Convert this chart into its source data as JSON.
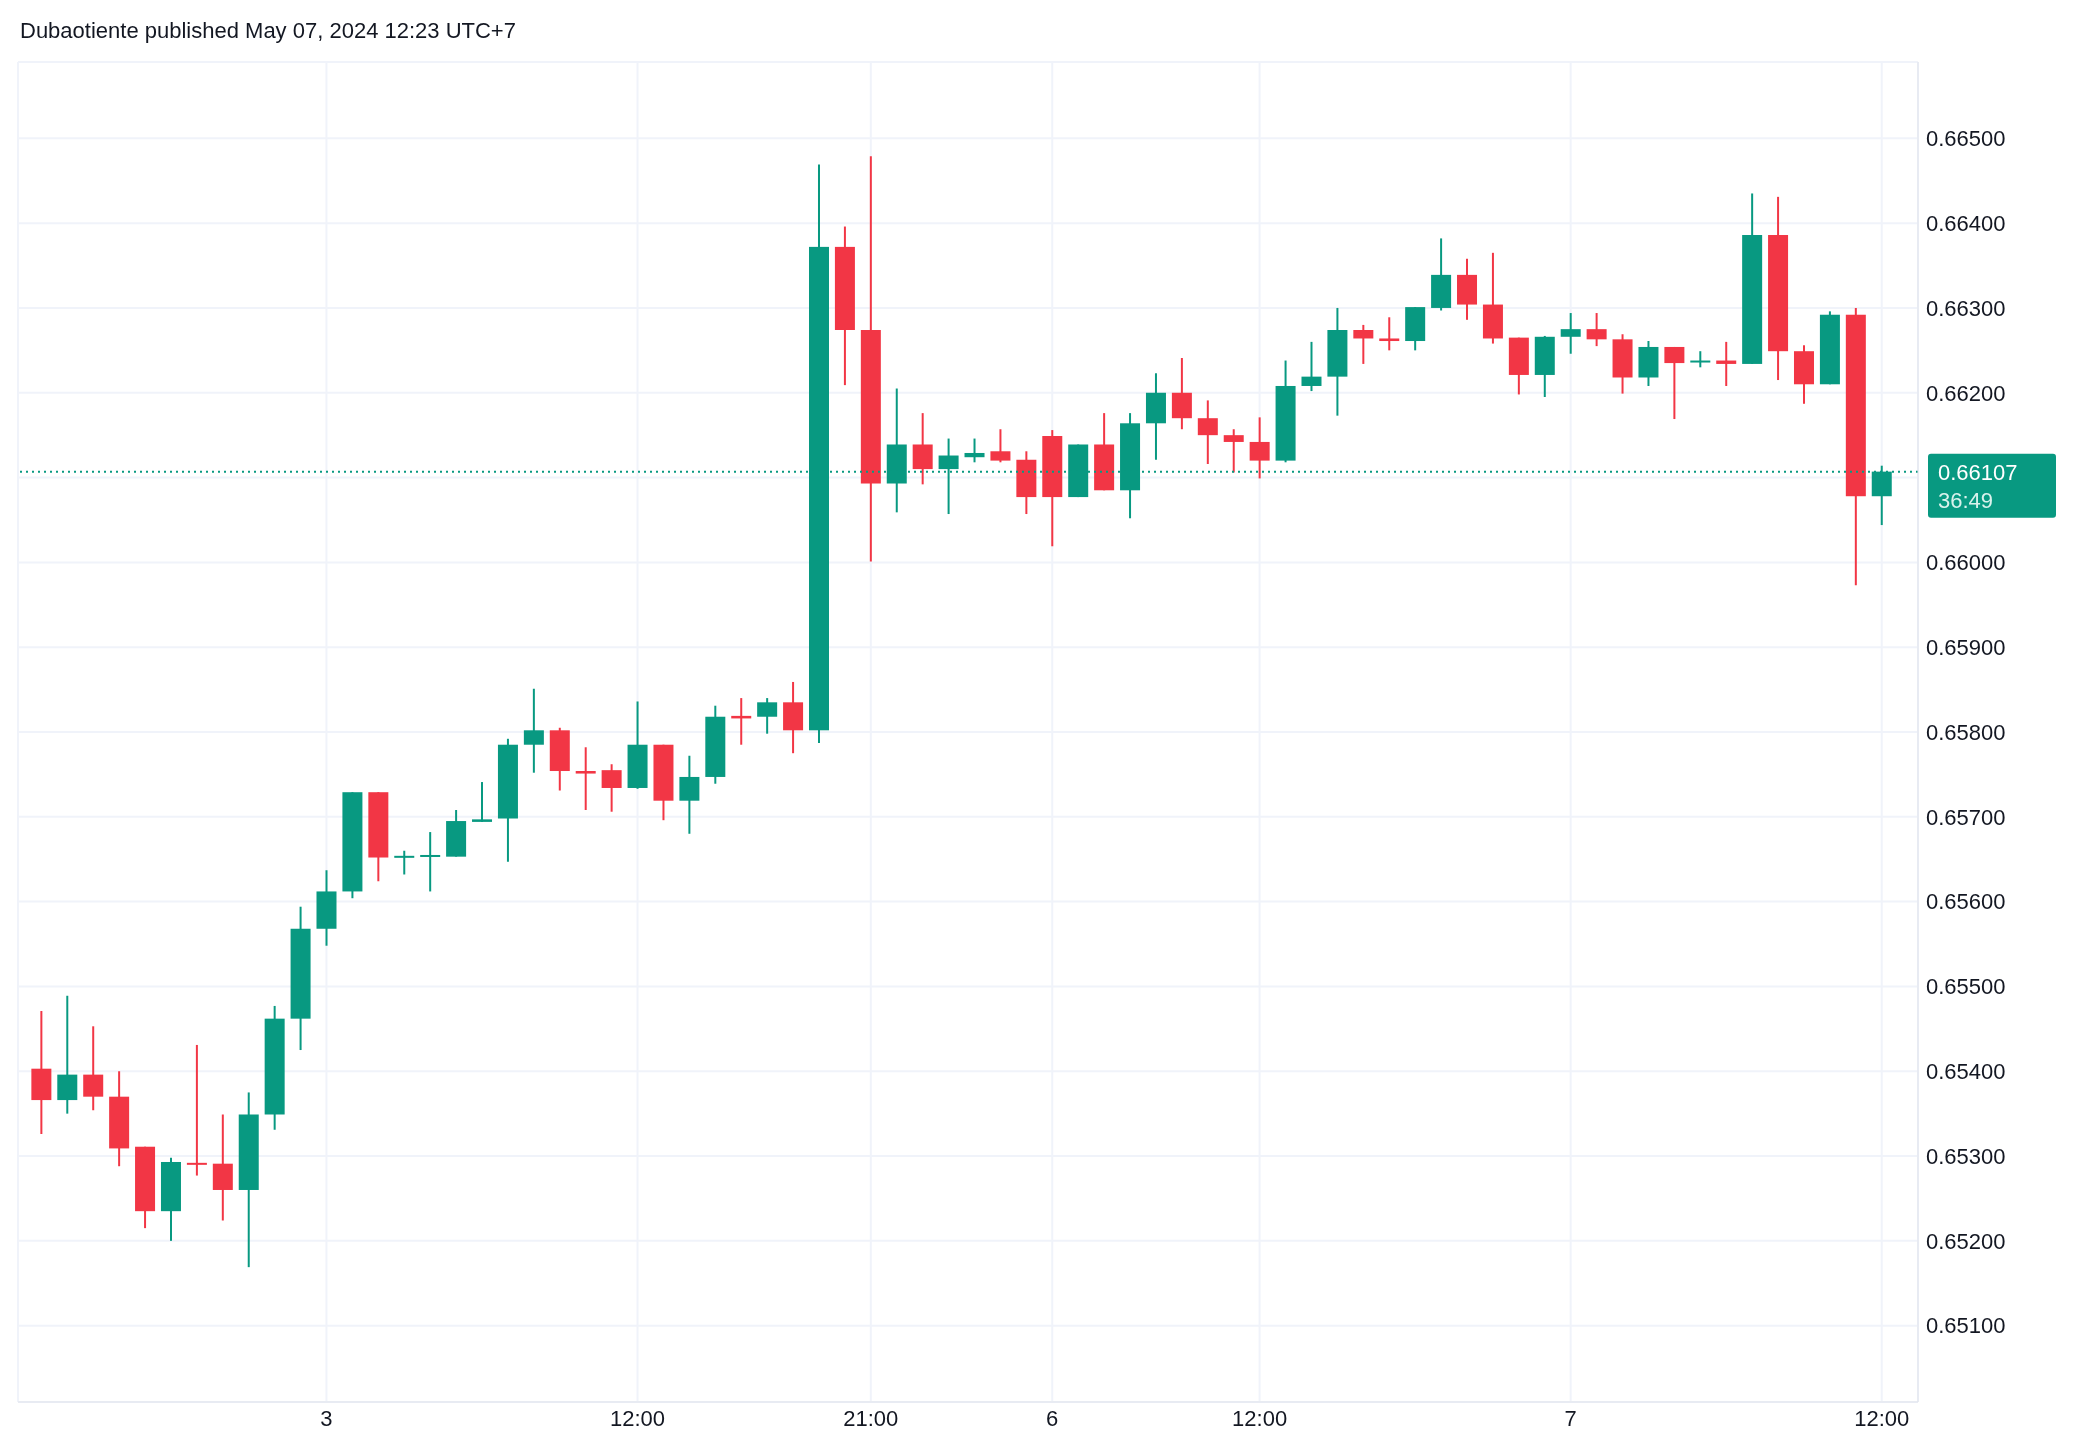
{
  "chart_data": {
    "type": "candlestick",
    "title": "Dubaotiente published May 07, 2024 12:23 UTC+7",
    "categories": [
      null,
      null,
      null,
      null,
      null,
      null,
      null,
      null,
      null,
      null,
      null,
      "3",
      null,
      null,
      null,
      null,
      null,
      null,
      null,
      null,
      null,
      null,
      null,
      "12:00",
      null,
      null,
      null,
      null,
      null,
      null,
      null,
      null,
      "21:00",
      null,
      null,
      null,
      null,
      null,
      null,
      "6",
      null,
      null,
      null,
      null,
      null,
      null,
      null,
      "12:00",
      null,
      null,
      null,
      null,
      null,
      null,
      null,
      null,
      null,
      null,
      null,
      "7",
      null,
      null,
      null,
      null,
      null,
      null,
      null,
      null,
      null,
      null,
      null,
      "12:00"
    ],
    "ohlc": [
      [
        0.65403,
        0.65471,
        0.65326,
        0.65366
      ],
      [
        0.65366,
        0.65489,
        0.6535,
        0.65396
      ],
      [
        0.65396,
        0.65453,
        0.65354,
        0.6537
      ],
      [
        0.6537,
        0.654,
        0.65288,
        0.65309
      ],
      [
        0.65311,
        0.65311,
        0.65215,
        0.65235
      ],
      [
        0.65235,
        0.65298,
        0.652,
        0.65293
      ],
      [
        0.65292,
        0.65431,
        0.65277,
        0.6529
      ],
      [
        0.65291,
        0.65349,
        0.65224,
        0.6526
      ],
      [
        0.6526,
        0.65375,
        0.65169,
        0.65349
      ],
      [
        0.65349,
        0.65477,
        0.65331,
        0.65462
      ],
      [
        0.65462,
        0.65594,
        0.65425,
        0.65568
      ],
      [
        0.65568,
        0.65637,
        0.65548,
        0.65612
      ],
      [
        0.65612,
        0.65729,
        0.65604,
        0.65729
      ],
      [
        0.65729,
        0.65729,
        0.65624,
        0.65652
      ],
      [
        0.65653,
        0.6566,
        0.65632,
        0.65654
      ],
      [
        0.65653,
        0.65682,
        0.65612,
        0.65655
      ],
      [
        0.65653,
        0.65708,
        0.65653,
        0.65695
      ],
      [
        0.65694,
        0.65741,
        0.65694,
        0.65697
      ],
      [
        0.65698,
        0.65792,
        0.65647,
        0.65785
      ],
      [
        0.65785,
        0.65851,
        0.65752,
        0.65802
      ],
      [
        0.65802,
        0.65805,
        0.65731,
        0.65754
      ],
      [
        0.65754,
        0.65782,
        0.65708,
        0.65751
      ],
      [
        0.65755,
        0.65762,
        0.65706,
        0.65734
      ],
      [
        0.65734,
        0.65836,
        0.65733,
        0.65785
      ],
      [
        0.65785,
        0.65785,
        0.65696,
        0.65719
      ],
      [
        0.65719,
        0.65772,
        0.6568,
        0.65747
      ],
      [
        0.65747,
        0.65831,
        0.65739,
        0.65818
      ],
      [
        0.65819,
        0.6584,
        0.65785,
        0.65816
      ],
      [
        0.65818,
        0.6584,
        0.65798,
        0.65835
      ],
      [
        0.65835,
        0.65859,
        0.65775,
        0.65802
      ],
      [
        0.65802,
        0.66469,
        0.65787,
        0.66372
      ],
      [
        0.66372,
        0.66396,
        0.66209,
        0.66274
      ],
      [
        0.66274,
        0.66479,
        0.66001,
        0.66093
      ],
      [
        0.66093,
        0.66205,
        0.66059,
        0.66139
      ],
      [
        0.66139,
        0.66176,
        0.66092,
        0.6611
      ],
      [
        0.6611,
        0.66146,
        0.66057,
        0.66126
      ],
      [
        0.66124,
        0.66146,
        0.66118,
        0.66129
      ],
      [
        0.66131,
        0.66157,
        0.66118,
        0.6612
      ],
      [
        0.66121,
        0.66131,
        0.66057,
        0.66077
      ],
      [
        0.66149,
        0.66156,
        0.66019,
        0.66077
      ],
      [
        0.66077,
        0.66139,
        0.66077,
        0.66139
      ],
      [
        0.66139,
        0.66176,
        0.66085,
        0.66085
      ],
      [
        0.66085,
        0.66176,
        0.66052,
        0.66164
      ],
      [
        0.66164,
        0.66223,
        0.66121,
        0.662
      ],
      [
        0.662,
        0.66241,
        0.66157,
        0.6617
      ],
      [
        0.6617,
        0.66191,
        0.66116,
        0.6615
      ],
      [
        0.6615,
        0.66157,
        0.66106,
        0.66142
      ],
      [
        0.66142,
        0.66171,
        0.66099,
        0.6612
      ],
      [
        0.6612,
        0.66238,
        0.66118,
        0.66208
      ],
      [
        0.66208,
        0.6626,
        0.66202,
        0.66219
      ],
      [
        0.66219,
        0.663,
        0.66173,
        0.66274
      ],
      [
        0.66274,
        0.6628,
        0.66234,
        0.66264
      ],
      [
        0.66264,
        0.66289,
        0.6625,
        0.66261
      ],
      [
        0.66261,
        0.66301,
        0.6625,
        0.66301
      ],
      [
        0.663,
        0.66382,
        0.66297,
        0.66339
      ],
      [
        0.66339,
        0.66358,
        0.66286,
        0.66304
      ],
      [
        0.66304,
        0.66365,
        0.66258,
        0.66264
      ],
      [
        0.66265,
        0.66265,
        0.66198,
        0.66221
      ],
      [
        0.66221,
        0.66267,
        0.66195,
        0.66266
      ],
      [
        0.66266,
        0.66294,
        0.66246,
        0.66275
      ],
      [
        0.66275,
        0.66294,
        0.66255,
        0.66263
      ],
      [
        0.66263,
        0.66269,
        0.66199,
        0.66218
      ],
      [
        0.66218,
        0.66261,
        0.66208,
        0.66254
      ],
      [
        0.66254,
        0.66254,
        0.66169,
        0.66235
      ],
      [
        0.66236,
        0.66249,
        0.6623,
        0.66238
      ],
      [
        0.66238,
        0.6626,
        0.66208,
        0.66234
      ],
      [
        0.66234,
        0.66435,
        0.66234,
        0.66386
      ],
      [
        0.66386,
        0.66431,
        0.66215,
        0.66249
      ],
      [
        0.66249,
        0.66256,
        0.66187,
        0.6621
      ],
      [
        0.6621,
        0.66296,
        0.6621,
        0.66292
      ],
      [
        0.66292,
        0.663,
        0.65973,
        0.66078
      ],
      [
        0.66078,
        0.66114,
        0.66044,
        0.66107
      ]
    ],
    "colors": [
      "#f23645",
      "#089981",
      "#f23645",
      "#f23645",
      "#f23645",
      "#089981",
      "#f23645",
      "#f23645",
      "#089981",
      "#089981",
      "#089981",
      "#089981",
      "#089981",
      "#f23645",
      "#089981",
      "#089981",
      "#089981",
      "#089981",
      "#089981",
      "#089981",
      "#f23645",
      "#f23645",
      "#f23645",
      "#089981",
      "#f23645",
      "#089981",
      "#089981",
      "#f23645",
      "#089981",
      "#f23645",
      "#089981",
      "#f23645",
      "#f23645",
      "#089981",
      "#f23645",
      "#089981",
      "#089981",
      "#f23645",
      "#f23645",
      "#f23645",
      "#089981",
      "#f23645",
      "#089981",
      "#089981",
      "#f23645",
      "#f23645",
      "#f23645",
      "#f23645",
      "#089981",
      "#089981",
      "#089981",
      "#f23645",
      "#f23645",
      "#089981",
      "#089981",
      "#f23645",
      "#f23645",
      "#f23645",
      "#089981",
      "#089981",
      "#f23645",
      "#f23645",
      "#089981",
      "#f23645",
      "#089981",
      "#f23645",
      "#089981",
      "#f23645",
      "#f23645",
      "#089981",
      "#f23645",
      "#089981"
    ],
    "ylim": [
      0.6501,
      0.6659
    ],
    "yticks": [
      {
        "value": 0.651,
        "label": "0.65100"
      },
      {
        "value": 0.652,
        "label": "0.65200"
      },
      {
        "value": 0.653,
        "label": "0.65300"
      },
      {
        "value": 0.654,
        "label": "0.65400"
      },
      {
        "value": 0.655,
        "label": "0.65500"
      },
      {
        "value": 0.656,
        "label": "0.65600"
      },
      {
        "value": 0.657,
        "label": "0.65700"
      },
      {
        "value": 0.658,
        "label": "0.65800"
      },
      {
        "value": 0.659,
        "label": "0.65900"
      },
      {
        "value": 0.66,
        "label": "0.66000"
      },
      {
        "value": 0.661,
        "label": null
      },
      {
        "value": 0.662,
        "label": "0.66200"
      },
      {
        "value": 0.663,
        "label": "0.66300"
      },
      {
        "value": 0.664,
        "label": "0.66400"
      },
      {
        "value": 0.665,
        "label": "0.66500"
      }
    ],
    "ref_lines": [
      {
        "axis": "y",
        "value": 0.66107,
        "label": "0.66107",
        "color": "#089981",
        "line_style": "dotted"
      }
    ],
    "annotations": [
      "36:49"
    ],
    "grid": true
  }
}
